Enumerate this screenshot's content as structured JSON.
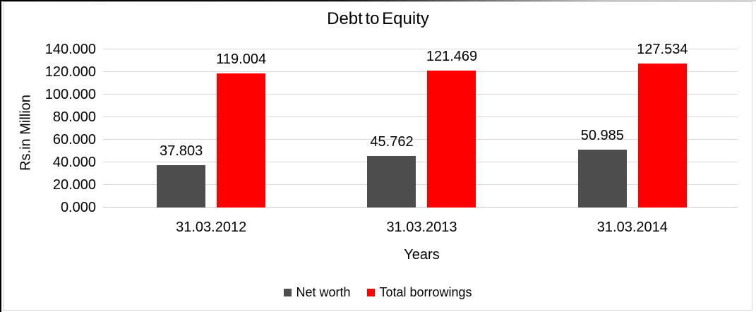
{
  "chart_data": {
    "type": "bar",
    "title": "Debt to Equity",
    "xlabel": "Years",
    "ylabel": "Rs.in Million",
    "categories": [
      "31.03.2012",
      "31.03.2013",
      "31.03.2014"
    ],
    "series": [
      {
        "name": "Net worth",
        "color": "#4D4D4D",
        "values": [
          37.803,
          45.762,
          50.985
        ],
        "labels": [
          "37.803",
          "45.762",
          "50.985"
        ]
      },
      {
        "name": "Total borrowings",
        "color": "#FF0000",
        "values": [
          119.004,
          121.469,
          127.534
        ],
        "labels": [
          "119.004",
          "121.469",
          "127.534"
        ]
      }
    ],
    "ylim": [
      0,
      140
    ],
    "ytick_step": 20,
    "yticks": [
      "0.000",
      "20.000",
      "40.000",
      "60.000",
      "80.000",
      "100.000",
      "120.000",
      "140.000"
    ],
    "grid": true,
    "legend_position": "bottom",
    "gridline_color": "#D9D9D9",
    "text_color": "#000000"
  }
}
